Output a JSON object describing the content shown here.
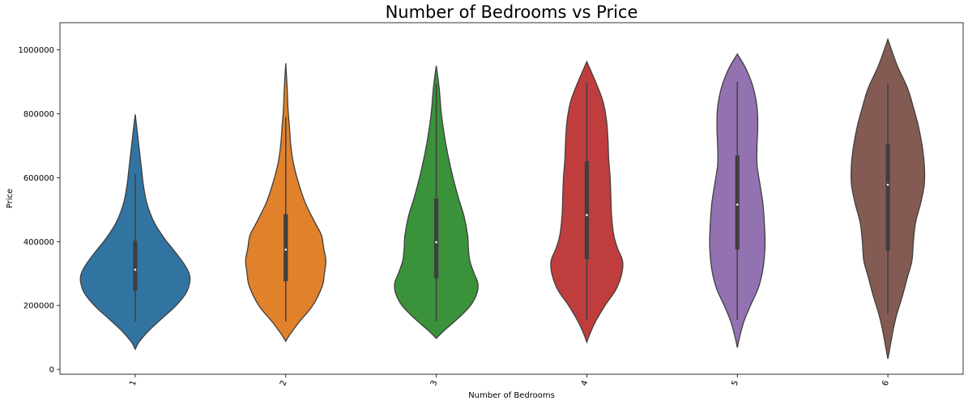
{
  "chart_data": {
    "type": "violin",
    "title": "Number of Bedrooms vs Price",
    "xlabel": "Number of Bedrooms",
    "ylabel": "Price",
    "categories": [
      "1",
      "2",
      "3",
      "4",
      "5",
      "6"
    ],
    "ylim": [
      -15000,
      1085000
    ],
    "yticks": [
      0,
      200000,
      400000,
      600000,
      800000,
      1000000
    ],
    "ytick_labels": [
      "0",
      "200000",
      "400000",
      "600000",
      "800000",
      "1000000"
    ],
    "grid": false,
    "legend": "none",
    "colors": [
      "#3274a1",
      "#e1812c",
      "#3a923a",
      "#c03d3e",
      "#9372b2",
      "#845b53"
    ],
    "series": [
      {
        "category": "1",
        "range": [
          63000,
          798000
        ],
        "whisker": [
          150000,
          612000
        ],
        "box": [
          247000,
          402000
        ],
        "median": 312000,
        "density": [
          [
            63000,
            0
          ],
          [
            85000,
            5
          ],
          [
            120000,
            18
          ],
          [
            160000,
            37
          ],
          [
            200000,
            56
          ],
          [
            240000,
            70
          ],
          [
            275000,
            75
          ],
          [
            300000,
            74
          ],
          [
            330000,
            67
          ],
          [
            370000,
            54
          ],
          [
            410000,
            40
          ],
          [
            460000,
            26
          ],
          [
            520000,
            16
          ],
          [
            580000,
            11
          ],
          [
            620000,
            9
          ],
          [
            680000,
            6
          ],
          [
            740000,
            3
          ],
          [
            798000,
            0
          ]
        ]
      },
      {
        "category": "2",
        "range": [
          88000,
          958000
        ],
        "whisker": [
          150000,
          790000
        ],
        "box": [
          276000,
          486000
        ],
        "median": 375000,
        "density": [
          [
            88000,
            0
          ],
          [
            110000,
            6
          ],
          [
            150000,
            19
          ],
          [
            200000,
            37
          ],
          [
            260000,
            50
          ],
          [
            300000,
            53
          ],
          [
            340000,
            55
          ],
          [
            380000,
            52
          ],
          [
            420000,
            49
          ],
          [
            460000,
            40
          ],
          [
            520000,
            27
          ],
          [
            580000,
            18
          ],
          [
            640000,
            11
          ],
          [
            700000,
            7
          ],
          [
            760000,
            5
          ],
          [
            820000,
            3
          ],
          [
            880000,
            2
          ],
          [
            958000,
            0
          ]
        ]
      },
      {
        "category": "3",
        "range": [
          97000,
          950000
        ],
        "whisker": [
          150000,
          895000
        ],
        "box": [
          285000,
          535000
        ],
        "median": 398000,
        "density": [
          [
            97000,
            0
          ],
          [
            120000,
            10
          ],
          [
            160000,
            30
          ],
          [
            200000,
            47
          ],
          [
            240000,
            56
          ],
          [
            270000,
            57
          ],
          [
            300000,
            52
          ],
          [
            340000,
            46
          ],
          [
            380000,
            44
          ],
          [
            420000,
            43
          ],
          [
            480000,
            38
          ],
          [
            540000,
            30
          ],
          [
            600000,
            23
          ],
          [
            660000,
            17
          ],
          [
            720000,
            12
          ],
          [
            800000,
            7
          ],
          [
            880000,
            4
          ],
          [
            950000,
            0
          ]
        ]
      },
      {
        "category": "4",
        "range": [
          85000,
          963000
        ],
        "whisker": [
          155000,
          900000
        ],
        "box": [
          345000,
          652000
        ],
        "median": 483000,
        "density": [
          [
            85000,
            0
          ],
          [
            110000,
            4
          ],
          [
            150000,
            12
          ],
          [
            200000,
            25
          ],
          [
            250000,
            40
          ],
          [
            300000,
            48
          ],
          [
            340000,
            49
          ],
          [
            380000,
            42
          ],
          [
            420000,
            37
          ],
          [
            480000,
            34
          ],
          [
            540000,
            33
          ],
          [
            600000,
            32
          ],
          [
            660000,
            30
          ],
          [
            720000,
            29
          ],
          [
            780000,
            27
          ],
          [
            840000,
            22
          ],
          [
            900000,
            12
          ],
          [
            963000,
            0
          ]
        ]
      },
      {
        "category": "5",
        "range": [
          68000,
          987000
        ],
        "whisker": [
          155000,
          900000
        ],
        "box": [
          375000,
          670000
        ],
        "median": 516000,
        "density": [
          [
            68000,
            0
          ],
          [
            100000,
            3
          ],
          [
            150000,
            9
          ],
          [
            200000,
            18
          ],
          [
            250000,
            28
          ],
          [
            300000,
            34
          ],
          [
            350000,
            37
          ],
          [
            400000,
            38
          ],
          [
            460000,
            37
          ],
          [
            520000,
            35
          ],
          [
            580000,
            31
          ],
          [
            640000,
            27
          ],
          [
            700000,
            27
          ],
          [
            760000,
            28
          ],
          [
            820000,
            27
          ],
          [
            880000,
            22
          ],
          [
            940000,
            12
          ],
          [
            987000,
            0
          ]
        ]
      },
      {
        "category": "6",
        "range": [
          33000,
          1033000
        ],
        "whisker": [
          175000,
          895000
        ],
        "box": [
          372000,
          705000
        ],
        "median": 578000,
        "density": [
          [
            33000,
            0
          ],
          [
            70000,
            3
          ],
          [
            120000,
            7
          ],
          [
            170000,
            12
          ],
          [
            230000,
            20
          ],
          [
            290000,
            27
          ],
          [
            340000,
            33
          ],
          [
            400000,
            35
          ],
          [
            460000,
            38
          ],
          [
            520000,
            45
          ],
          [
            580000,
            50
          ],
          [
            640000,
            50
          ],
          [
            700000,
            47
          ],
          [
            760000,
            42
          ],
          [
            820000,
            35
          ],
          [
            880000,
            27
          ],
          [
            950000,
            13
          ],
          [
            1033000,
            0
          ]
        ]
      }
    ]
  }
}
